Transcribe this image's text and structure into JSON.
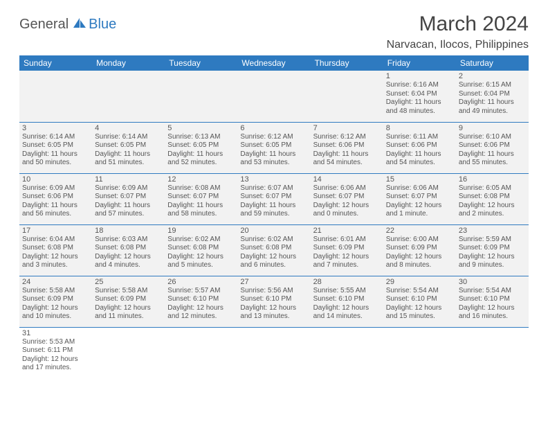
{
  "logo": {
    "part1": "General",
    "part2": "Blue"
  },
  "title": "March 2024",
  "location": "Narvacan, Ilocos, Philippines",
  "colors": {
    "header_bg": "#2e7ac0",
    "header_text": "#ffffff",
    "cell_bg": "#f2f2f2",
    "border": "#2e7ac0",
    "text": "#555555"
  },
  "weekdays": [
    "Sunday",
    "Monday",
    "Tuesday",
    "Wednesday",
    "Thursday",
    "Friday",
    "Saturday"
  ],
  "weeks": [
    [
      null,
      null,
      null,
      null,
      null,
      {
        "d": "1",
        "r": "Sunrise: 6:16 AM",
        "s": "Sunset: 6:04 PM",
        "l1": "Daylight: 11 hours",
        "l2": "and 48 minutes."
      },
      {
        "d": "2",
        "r": "Sunrise: 6:15 AM",
        "s": "Sunset: 6:04 PM",
        "l1": "Daylight: 11 hours",
        "l2": "and 49 minutes."
      }
    ],
    [
      {
        "d": "3",
        "r": "Sunrise: 6:14 AM",
        "s": "Sunset: 6:05 PM",
        "l1": "Daylight: 11 hours",
        "l2": "and 50 minutes."
      },
      {
        "d": "4",
        "r": "Sunrise: 6:14 AM",
        "s": "Sunset: 6:05 PM",
        "l1": "Daylight: 11 hours",
        "l2": "and 51 minutes."
      },
      {
        "d": "5",
        "r": "Sunrise: 6:13 AM",
        "s": "Sunset: 6:05 PM",
        "l1": "Daylight: 11 hours",
        "l2": "and 52 minutes."
      },
      {
        "d": "6",
        "r": "Sunrise: 6:12 AM",
        "s": "Sunset: 6:05 PM",
        "l1": "Daylight: 11 hours",
        "l2": "and 53 minutes."
      },
      {
        "d": "7",
        "r": "Sunrise: 6:12 AM",
        "s": "Sunset: 6:06 PM",
        "l1": "Daylight: 11 hours",
        "l2": "and 54 minutes."
      },
      {
        "d": "8",
        "r": "Sunrise: 6:11 AM",
        "s": "Sunset: 6:06 PM",
        "l1": "Daylight: 11 hours",
        "l2": "and 54 minutes."
      },
      {
        "d": "9",
        "r": "Sunrise: 6:10 AM",
        "s": "Sunset: 6:06 PM",
        "l1": "Daylight: 11 hours",
        "l2": "and 55 minutes."
      }
    ],
    [
      {
        "d": "10",
        "r": "Sunrise: 6:09 AM",
        "s": "Sunset: 6:06 PM",
        "l1": "Daylight: 11 hours",
        "l2": "and 56 minutes."
      },
      {
        "d": "11",
        "r": "Sunrise: 6:09 AM",
        "s": "Sunset: 6:07 PM",
        "l1": "Daylight: 11 hours",
        "l2": "and 57 minutes."
      },
      {
        "d": "12",
        "r": "Sunrise: 6:08 AM",
        "s": "Sunset: 6:07 PM",
        "l1": "Daylight: 11 hours",
        "l2": "and 58 minutes."
      },
      {
        "d": "13",
        "r": "Sunrise: 6:07 AM",
        "s": "Sunset: 6:07 PM",
        "l1": "Daylight: 11 hours",
        "l2": "and 59 minutes."
      },
      {
        "d": "14",
        "r": "Sunrise: 6:06 AM",
        "s": "Sunset: 6:07 PM",
        "l1": "Daylight: 12 hours",
        "l2": "and 0 minutes."
      },
      {
        "d": "15",
        "r": "Sunrise: 6:06 AM",
        "s": "Sunset: 6:07 PM",
        "l1": "Daylight: 12 hours",
        "l2": "and 1 minute."
      },
      {
        "d": "16",
        "r": "Sunrise: 6:05 AM",
        "s": "Sunset: 6:08 PM",
        "l1": "Daylight: 12 hours",
        "l2": "and 2 minutes."
      }
    ],
    [
      {
        "d": "17",
        "r": "Sunrise: 6:04 AM",
        "s": "Sunset: 6:08 PM",
        "l1": "Daylight: 12 hours",
        "l2": "and 3 minutes."
      },
      {
        "d": "18",
        "r": "Sunrise: 6:03 AM",
        "s": "Sunset: 6:08 PM",
        "l1": "Daylight: 12 hours",
        "l2": "and 4 minutes."
      },
      {
        "d": "19",
        "r": "Sunrise: 6:02 AM",
        "s": "Sunset: 6:08 PM",
        "l1": "Daylight: 12 hours",
        "l2": "and 5 minutes."
      },
      {
        "d": "20",
        "r": "Sunrise: 6:02 AM",
        "s": "Sunset: 6:08 PM",
        "l1": "Daylight: 12 hours",
        "l2": "and 6 minutes."
      },
      {
        "d": "21",
        "r": "Sunrise: 6:01 AM",
        "s": "Sunset: 6:09 PM",
        "l1": "Daylight: 12 hours",
        "l2": "and 7 minutes."
      },
      {
        "d": "22",
        "r": "Sunrise: 6:00 AM",
        "s": "Sunset: 6:09 PM",
        "l1": "Daylight: 12 hours",
        "l2": "and 8 minutes."
      },
      {
        "d": "23",
        "r": "Sunrise: 5:59 AM",
        "s": "Sunset: 6:09 PM",
        "l1": "Daylight: 12 hours",
        "l2": "and 9 minutes."
      }
    ],
    [
      {
        "d": "24",
        "r": "Sunrise: 5:58 AM",
        "s": "Sunset: 6:09 PM",
        "l1": "Daylight: 12 hours",
        "l2": "and 10 minutes."
      },
      {
        "d": "25",
        "r": "Sunrise: 5:58 AM",
        "s": "Sunset: 6:09 PM",
        "l1": "Daylight: 12 hours",
        "l2": "and 11 minutes."
      },
      {
        "d": "26",
        "r": "Sunrise: 5:57 AM",
        "s": "Sunset: 6:10 PM",
        "l1": "Daylight: 12 hours",
        "l2": "and 12 minutes."
      },
      {
        "d": "27",
        "r": "Sunrise: 5:56 AM",
        "s": "Sunset: 6:10 PM",
        "l1": "Daylight: 12 hours",
        "l2": "and 13 minutes."
      },
      {
        "d": "28",
        "r": "Sunrise: 5:55 AM",
        "s": "Sunset: 6:10 PM",
        "l1": "Daylight: 12 hours",
        "l2": "and 14 minutes."
      },
      {
        "d": "29",
        "r": "Sunrise: 5:54 AM",
        "s": "Sunset: 6:10 PM",
        "l1": "Daylight: 12 hours",
        "l2": "and 15 minutes."
      },
      {
        "d": "30",
        "r": "Sunrise: 5:54 AM",
        "s": "Sunset: 6:10 PM",
        "l1": "Daylight: 12 hours",
        "l2": "and 16 minutes."
      }
    ],
    [
      {
        "d": "31",
        "r": "Sunrise: 5:53 AM",
        "s": "Sunset: 6:11 PM",
        "l1": "Daylight: 12 hours",
        "l2": "and 17 minutes."
      },
      null,
      null,
      null,
      null,
      null,
      null
    ]
  ]
}
